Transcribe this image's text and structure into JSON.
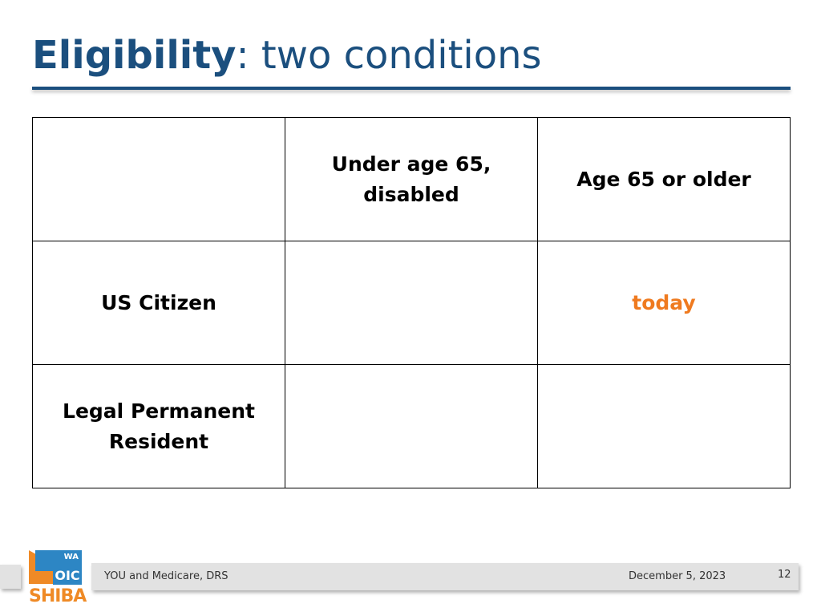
{
  "slide": {
    "title_bold": "Eligibility",
    "title_rest": ": two conditions"
  },
  "table": {
    "header": [
      "",
      "Under age 65, disabled",
      "Age 65 or older"
    ],
    "rows": [
      {
        "label": "US Citizen",
        "under65": "",
        "over65": "today"
      },
      {
        "label": "Legal Permanent Resident",
        "under65": "",
        "over65": ""
      }
    ]
  },
  "footer": {
    "title": "YOU and Medicare, DRS",
    "date": "December 5, 2023",
    "page_number": "12"
  },
  "logo": {
    "wa": "WA",
    "oic": "OIC",
    "shiba": "SHIBA"
  },
  "colors": {
    "title_blue": "#1b4f7e",
    "accent_orange": "#ef7a1f",
    "logo_blue": "#2d86c4",
    "logo_orange": "#ef8a26"
  }
}
